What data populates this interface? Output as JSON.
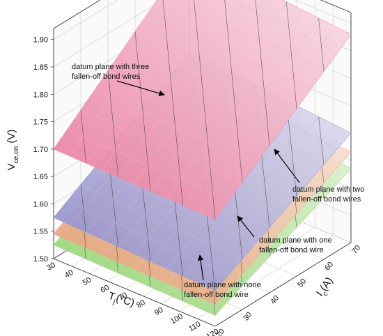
{
  "chart_data": {
    "type": "surface3d",
    "axes": {
      "z": {
        "label_main": "V",
        "label_sub": "ce,on",
        "label_unit": " (V)",
        "ticks": [
          "1.50",
          "1.55",
          "1.60",
          "1.65",
          "1.70",
          "1.75",
          "1.80",
          "1.85",
          "1.90"
        ],
        "range": [
          1.5,
          1.92
        ]
      },
      "tj": {
        "label_main": "T",
        "label_sub": "j",
        "label_unit": "(°C)",
        "ticks": [
          "30",
          "40",
          "50",
          "60",
          "70",
          "80",
          "90",
          "100",
          "110",
          "120"
        ],
        "range": [
          30,
          120
        ]
      },
      "ic": {
        "label_main": "I",
        "label_sub": "c",
        "label_unit": "(A)",
        "ticks": [
          "20",
          "30",
          "40",
          "50",
          "60",
          "70"
        ],
        "range": [
          20,
          70
        ]
      }
    },
    "grid": true,
    "series": [
      {
        "name": "datum plane with none fallen-off bond wire",
        "color": "#8fd16a",
        "corners": {
          "tj30_ic20": 1.525,
          "tj120_ic20": 1.52,
          "tj30_ic70": 1.66,
          "tj120_ic70": 1.635
        }
      },
      {
        "name": "datum plane with one fallen-off bond wire",
        "color": "#e59a70",
        "corners": {
          "tj30_ic20": 1.545,
          "tj120_ic20": 1.54,
          "tj30_ic70": 1.69,
          "tj120_ic70": 1.665
        }
      },
      {
        "name": "datum plane with two fallen-off bond wires",
        "color": "#8a88c7",
        "corners": {
          "tj30_ic20": 1.575,
          "tj120_ic20": 1.565,
          "tj30_ic70": 1.725,
          "tj120_ic70": 1.7
        }
      },
      {
        "name": "datum plane with three fallen-off bond wires",
        "color": "#e8789a",
        "corners": {
          "tj30_ic20": 1.7,
          "tj120_ic20": 1.695,
          "tj30_ic70": 1.905,
          "tj120_ic70": 1.88
        }
      }
    ],
    "annotations": [
      {
        "line1": "datum plane with three",
        "line2": "fallen-off bond wires"
      },
      {
        "line1": "datum plane with two",
        "line2": "fallen-off bond wires"
      },
      {
        "line1": "datum plane with one",
        "line2": "fallen-off bond wire"
      },
      {
        "line1": "datum plane with none",
        "line2": "fallen-off bond wire"
      }
    ]
  }
}
